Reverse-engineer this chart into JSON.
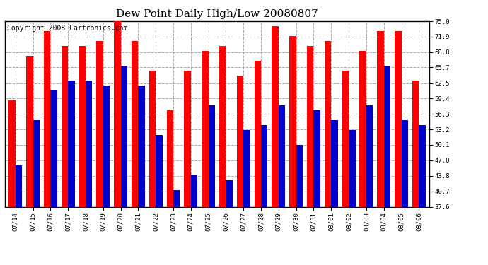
{
  "title": "Dew Point Daily High/Low 20080807",
  "copyright": "Copyright 2008 Cartronics.com",
  "dates": [
    "07/14",
    "07/15",
    "07/16",
    "07/17",
    "07/18",
    "07/19",
    "07/20",
    "07/21",
    "07/22",
    "07/23",
    "07/24",
    "07/25",
    "07/26",
    "07/27",
    "07/28",
    "07/29",
    "07/30",
    "07/31",
    "08/01",
    "08/02",
    "08/03",
    "08/04",
    "08/05",
    "08/06"
  ],
  "highs": [
    59.0,
    68.0,
    73.0,
    70.0,
    70.0,
    71.0,
    76.0,
    71.0,
    65.0,
    57.0,
    65.0,
    69.0,
    70.0,
    64.0,
    67.0,
    74.0,
    72.0,
    70.0,
    71.0,
    65.0,
    69.0,
    73.0,
    73.0,
    63.0
  ],
  "lows": [
    46.0,
    55.0,
    61.0,
    63.0,
    63.0,
    62.0,
    66.0,
    62.0,
    52.0,
    41.0,
    44.0,
    58.0,
    43.0,
    53.0,
    54.0,
    58.0,
    50.0,
    57.0,
    55.0,
    53.0,
    58.0,
    66.0,
    55.0,
    54.0
  ],
  "high_color": "#ff0000",
  "low_color": "#0000cc",
  "background_color": "#ffffff",
  "grid_color": "#aaaaaa",
  "ylim": [
    37.6,
    75.0
  ],
  "yticks": [
    37.6,
    40.7,
    43.8,
    47.0,
    50.1,
    53.2,
    56.3,
    59.4,
    62.5,
    65.7,
    68.8,
    71.9,
    75.0
  ],
  "title_fontsize": 11,
  "copyright_fontsize": 7,
  "tick_fontsize": 6.5,
  "bar_width": 0.38
}
